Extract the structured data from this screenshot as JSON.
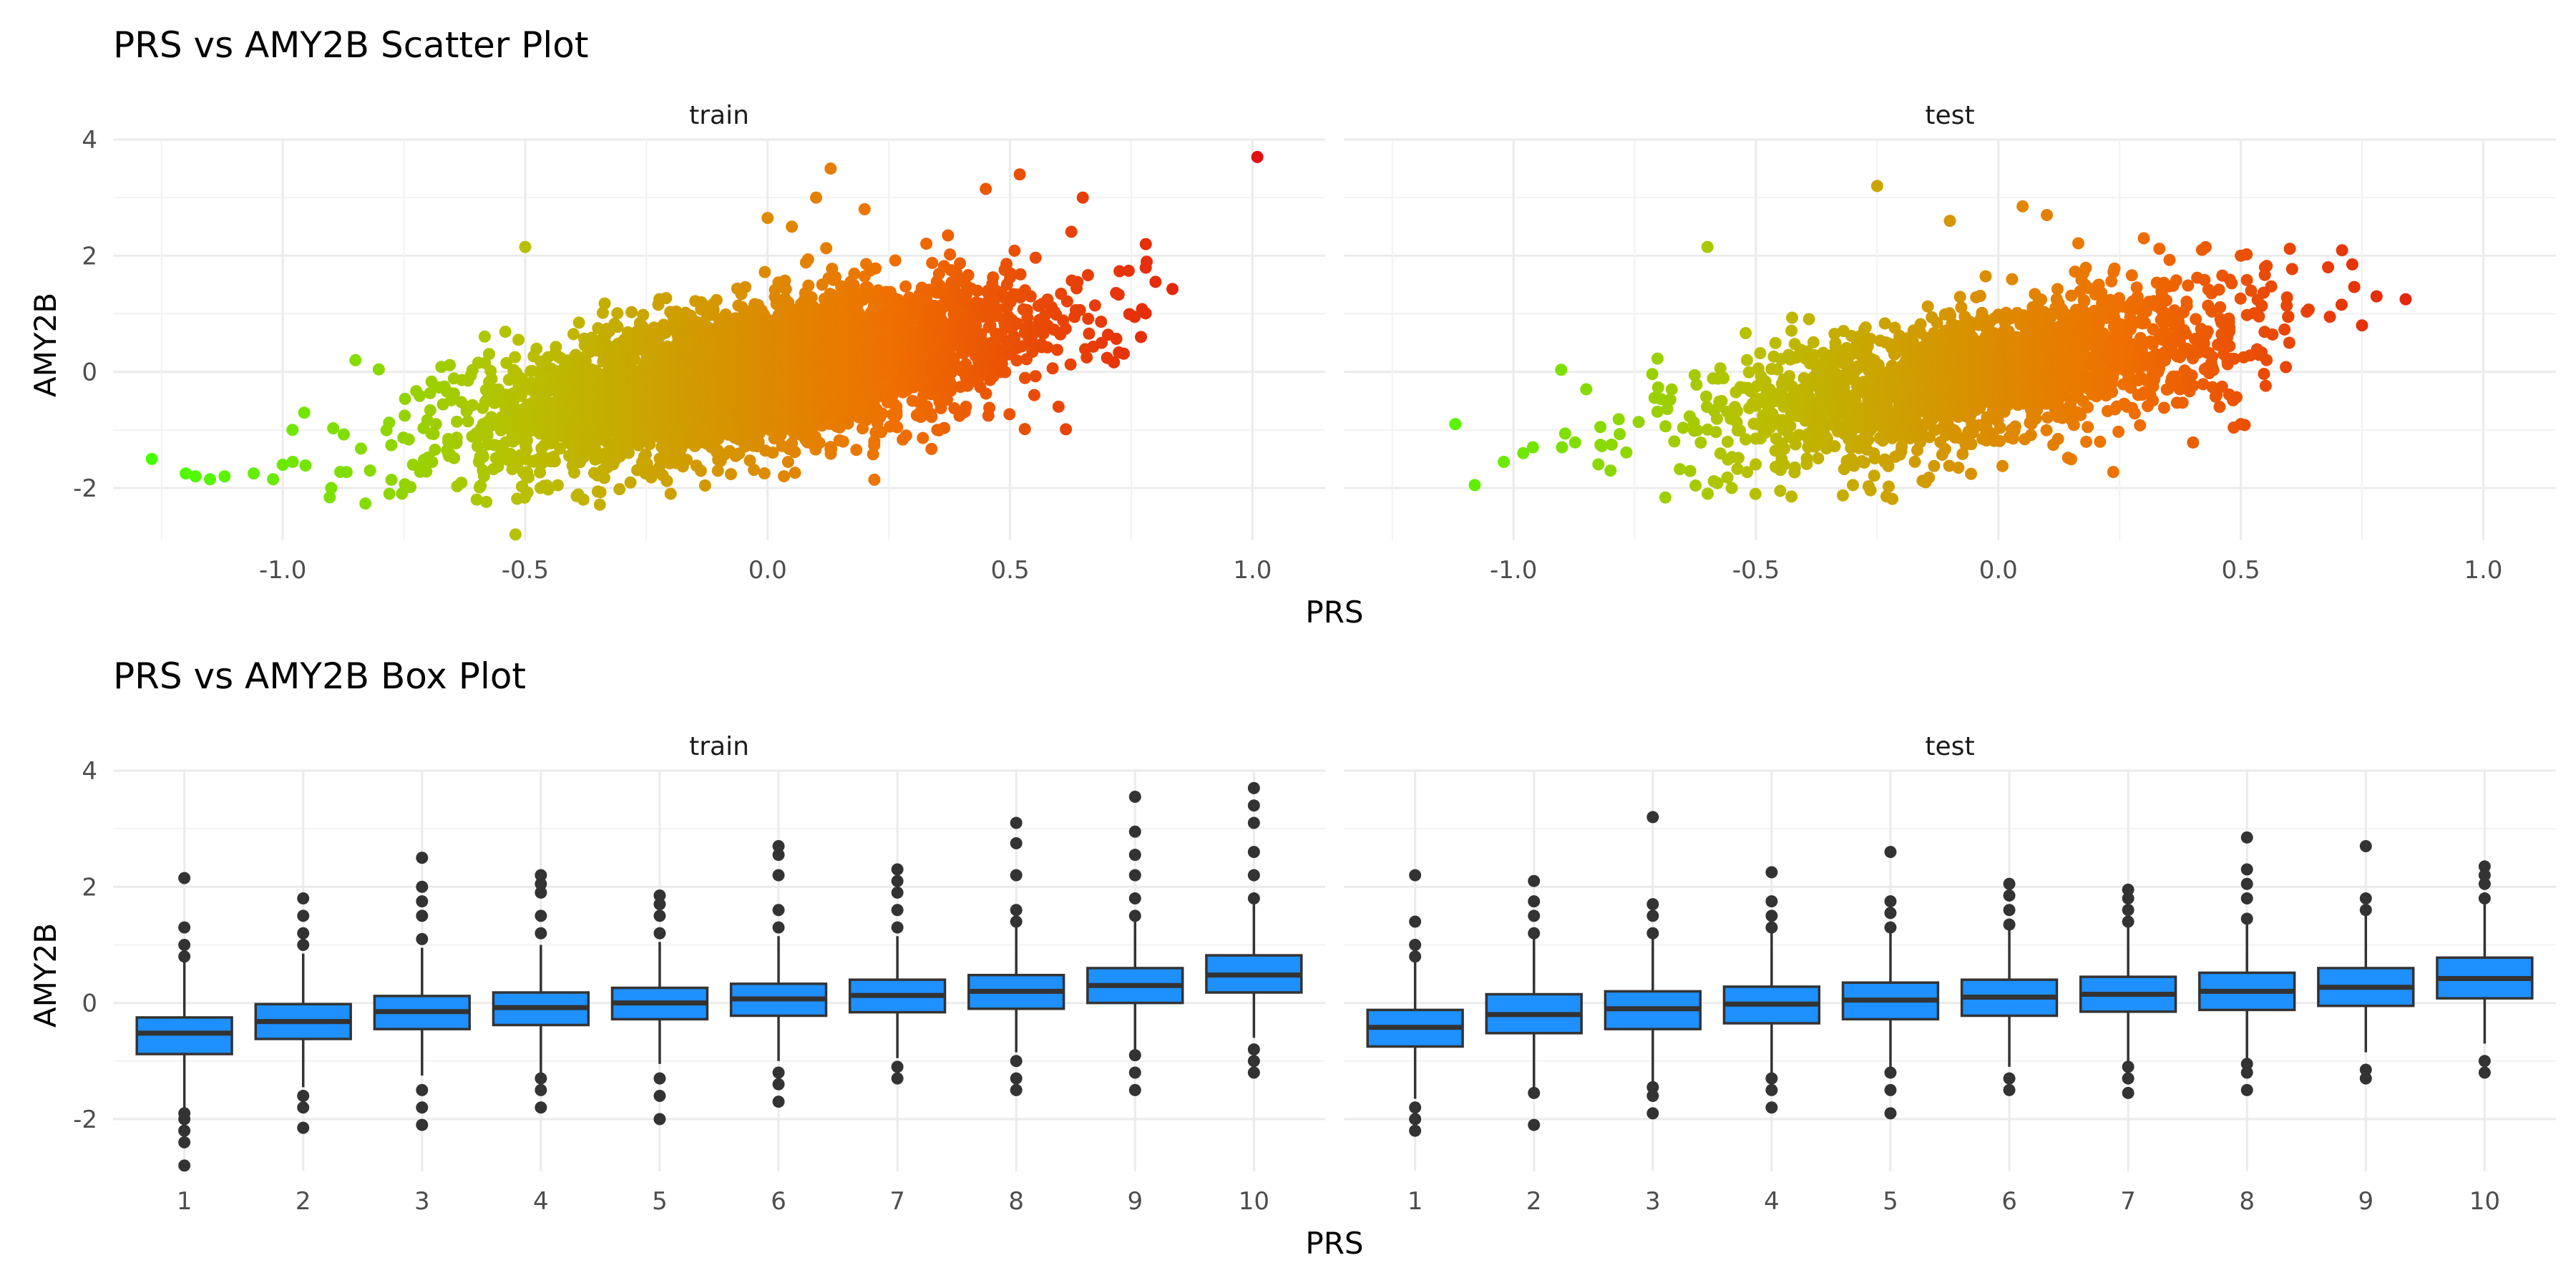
{
  "figure": {
    "scatter_title": "PRS vs AMY2B Scatter Plot",
    "box_title": "PRS vs AMY2B Box Plot",
    "xlabel": "PRS",
    "ylabel": "AMY2B",
    "colors": {
      "gradient": [
        "#44ff00",
        "#b8c000",
        "#ef7000",
        "#e01010"
      ],
      "box_fill": "#1e90ff",
      "box_line": "#333333",
      "grid": "#ebebeb"
    }
  },
  "chart_data": [
    {
      "type": "scatter",
      "title": "PRS vs AMY2B Scatter Plot",
      "xlabel": "PRS",
      "ylabel": "AMY2B",
      "facets": [
        "train",
        "test"
      ],
      "xlim": [
        -1.35,
        1.15
      ],
      "ylim": [
        -2.9,
        4.0
      ],
      "xticks": [
        -1.0,
        -0.5,
        0.0,
        0.5,
        1.0
      ],
      "xtick_labels": [
        "-1.0",
        "-0.5",
        "0.0",
        "0.5",
        "1.0"
      ],
      "yticks": [
        -2,
        0,
        2,
        4
      ],
      "ytick_labels": [
        "-2",
        "0",
        "2",
        "4"
      ],
      "grid": true,
      "color_encoding": "gradient by PRS (green low, orange/red high)",
      "trend": {
        "train": {
          "x_range": [
            -1.25,
            1.01
          ],
          "approx_slope": 1.4,
          "approx_intercept": 0.0
        },
        "test": {
          "x_range": [
            -1.12,
            0.84
          ],
          "approx_slope": 1.4,
          "approx_intercept": 0.0
        }
      },
      "series": [
        {
          "name": "train",
          "points": [
            [
              -1.27,
              -1.5
            ],
            [
              -1.2,
              -1.75
            ],
            [
              -1.18,
              -1.8
            ],
            [
              -1.15,
              -1.85
            ],
            [
              -1.12,
              -1.8
            ],
            [
              -1.06,
              -1.75
            ],
            [
              -1.02,
              -1.85
            ],
            [
              -1.0,
              -1.6
            ],
            [
              -0.98,
              -1.0
            ],
            [
              -0.9,
              -2.0
            ],
            [
              -0.85,
              0.2
            ],
            [
              -0.82,
              -1.7
            ],
            [
              -0.78,
              -2.1
            ],
            [
              -0.5,
              2.15
            ],
            [
              -0.6,
              -2.2
            ],
            [
              -0.52,
              -2.8
            ],
            [
              -0.38,
              -2.2
            ],
            [
              -0.2,
              -2.1
            ],
            [
              0.0,
              2.65
            ],
            [
              0.05,
              2.5
            ],
            [
              0.13,
              3.5
            ],
            [
              0.1,
              3.0
            ],
            [
              0.2,
              2.8
            ],
            [
              0.45,
              3.15
            ],
            [
              0.52,
              3.4
            ],
            [
              0.65,
              3.0
            ],
            [
              0.78,
              2.2
            ],
            [
              0.8,
              1.55
            ],
            [
              0.77,
              0.6
            ],
            [
              0.6,
              -0.6
            ],
            [
              0.55,
              -0.4
            ],
            [
              0.35,
              -1.0
            ],
            [
              1.01,
              3.7
            ]
          ]
        },
        {
          "name": "test",
          "points": [
            [
              -1.12,
              -0.9
            ],
            [
              -1.08,
              -1.95
            ],
            [
              -1.02,
              -1.55
            ],
            [
              -0.98,
              -1.4
            ],
            [
              -0.96,
              -1.3
            ],
            [
              -0.9,
              -1.3
            ],
            [
              -0.85,
              -0.3
            ],
            [
              -0.8,
              -1.7
            ],
            [
              -0.6,
              2.15
            ],
            [
              -0.55,
              -2.0
            ],
            [
              -0.45,
              -2.05
            ],
            [
              -0.3,
              -1.95
            ],
            [
              -0.25,
              3.2
            ],
            [
              -0.15,
              -1.9
            ],
            [
              -0.1,
              2.6
            ],
            [
              0.05,
              2.85
            ],
            [
              0.1,
              2.7
            ],
            [
              0.3,
              2.3
            ],
            [
              0.42,
              2.1
            ],
            [
              0.5,
              2.0
            ],
            [
              0.55,
              1.8
            ],
            [
              0.68,
              1.8
            ],
            [
              0.73,
              1.85
            ],
            [
              0.78,
              1.3
            ],
            [
              0.84,
              1.25
            ],
            [
              0.75,
              0.8
            ],
            [
              0.6,
              0.5
            ],
            [
              0.5,
              -0.9
            ],
            [
              0.45,
              -0.4
            ]
          ]
        }
      ]
    },
    {
      "type": "box",
      "title": "PRS vs AMY2B Box Plot",
      "xlabel": "PRS",
      "ylabel": "AMY2B",
      "facets": [
        "train",
        "test"
      ],
      "categories": [
        "1",
        "2",
        "3",
        "4",
        "5",
        "6",
        "7",
        "8",
        "9",
        "10"
      ],
      "ylim": [
        -2.9,
        4.0
      ],
      "yticks": [
        -2,
        0,
        2,
        4
      ],
      "ytick_labels": [
        "-2",
        "0",
        "2",
        "4"
      ],
      "grid": true,
      "series": [
        {
          "name": "train",
          "boxes": [
            {
              "q1": -0.88,
              "median": -0.52,
              "q3": -0.25,
              "whisker_low": -1.8,
              "whisker_high": 0.7,
              "outliers": [
                -2.8,
                -2.4,
                -2.2,
                -2.0,
                -1.9,
                0.8,
                1.0,
                1.3,
                2.15
              ]
            },
            {
              "q1": -0.62,
              "median": -0.32,
              "q3": -0.02,
              "whisker_low": -1.45,
              "whisker_high": 0.85,
              "outliers": [
                -2.15,
                -1.8,
                -1.6,
                1.0,
                1.2,
                1.5,
                1.8
              ]
            },
            {
              "q1": -0.45,
              "median": -0.15,
              "q3": 0.12,
              "whisker_low": -1.25,
              "whisker_high": 0.95,
              "outliers": [
                -2.1,
                -1.8,
                -1.5,
                1.1,
                1.5,
                1.75,
                2.0,
                2.5
              ]
            },
            {
              "q1": -0.38,
              "median": -0.08,
              "q3": 0.18,
              "whisker_low": -1.2,
              "whisker_high": 1.0,
              "outliers": [
                -1.8,
                -1.5,
                -1.3,
                1.2,
                1.5,
                1.9,
                2.05,
                2.2
              ]
            },
            {
              "q1": -0.28,
              "median": 0.0,
              "q3": 0.26,
              "whisker_low": -1.05,
              "whisker_high": 1.05,
              "outliers": [
                -2.0,
                -1.6,
                -1.3,
                1.2,
                1.5,
                1.7,
                1.85
              ]
            },
            {
              "q1": -0.22,
              "median": 0.07,
              "q3": 0.33,
              "whisker_low": -1.0,
              "whisker_high": 1.15,
              "outliers": [
                -1.7,
                -1.4,
                -1.2,
                1.3,
                1.6,
                2.2,
                2.55,
                2.7
              ]
            },
            {
              "q1": -0.16,
              "median": 0.13,
              "q3": 0.4,
              "whisker_low": -0.95,
              "whisker_high": 1.15,
              "outliers": [
                -1.3,
                -1.1,
                1.3,
                1.6,
                1.9,
                2.1,
                2.3
              ]
            },
            {
              "q1": -0.1,
              "median": 0.2,
              "q3": 0.48,
              "whisker_low": -0.85,
              "whisker_high": 1.3,
              "outliers": [
                -1.5,
                -1.3,
                -1.0,
                1.4,
                1.6,
                2.2,
                2.75,
                3.1
              ]
            },
            {
              "q1": 0.0,
              "median": 0.3,
              "q3": 0.6,
              "whisker_low": -0.8,
              "whisker_high": 1.4,
              "outliers": [
                -1.5,
                -1.2,
                -0.9,
                1.5,
                1.8,
                2.2,
                2.55,
                2.95,
                3.55
              ]
            },
            {
              "q1": 0.18,
              "median": 0.48,
              "q3": 0.82,
              "whisker_low": -0.6,
              "whisker_high": 1.7,
              "outliers": [
                -1.2,
                -1.0,
                -0.8,
                1.8,
                2.2,
                2.6,
                3.1,
                3.4,
                3.7
              ]
            }
          ]
        },
        {
          "name": "test",
          "boxes": [
            {
              "q1": -0.75,
              "median": -0.42,
              "q3": -0.12,
              "whisker_low": -1.65,
              "whisker_high": 0.75,
              "outliers": [
                -2.2,
                -2.0,
                -1.8,
                0.8,
                1.0,
                1.4,
                2.2
              ]
            },
            {
              "q1": -0.52,
              "median": -0.2,
              "q3": 0.15,
              "whisker_low": -1.5,
              "whisker_high": 1.1,
              "outliers": [
                -2.1,
                -1.55,
                1.2,
                1.5,
                1.75,
                2.1
              ]
            },
            {
              "q1": -0.45,
              "median": -0.1,
              "q3": 0.2,
              "whisker_low": -1.35,
              "whisker_high": 1.1,
              "outliers": [
                -1.9,
                -1.6,
                -1.45,
                1.2,
                1.5,
                1.7,
                3.2
              ]
            },
            {
              "q1": -0.35,
              "median": -0.02,
              "q3": 0.28,
              "whisker_low": -1.2,
              "whisker_high": 1.2,
              "outliers": [
                -1.8,
                -1.5,
                -1.3,
                1.3,
                1.5,
                1.75,
                2.25
              ]
            },
            {
              "q1": -0.28,
              "median": 0.05,
              "q3": 0.35,
              "whisker_low": -1.15,
              "whisker_high": 1.2,
              "outliers": [
                -1.9,
                -1.5,
                -1.2,
                1.3,
                1.55,
                1.75,
                2.6
              ]
            },
            {
              "q1": -0.22,
              "median": 0.1,
              "q3": 0.4,
              "whisker_low": -1.1,
              "whisker_high": 1.25,
              "outliers": [
                -1.5,
                -1.3,
                1.35,
                1.6,
                1.85,
                2.05
              ]
            },
            {
              "q1": -0.15,
              "median": 0.15,
              "q3": 0.45,
              "whisker_low": -1.0,
              "whisker_high": 1.3,
              "outliers": [
                -1.55,
                -1.3,
                -1.1,
                1.4,
                1.6,
                1.8,
                1.95
              ]
            },
            {
              "q1": -0.12,
              "median": 0.2,
              "q3": 0.52,
              "whisker_low": -0.95,
              "whisker_high": 1.35,
              "outliers": [
                -1.5,
                -1.2,
                -1.05,
                1.45,
                1.8,
                2.05,
                2.3,
                2.85
              ]
            },
            {
              "q1": -0.05,
              "median": 0.27,
              "q3": 0.6,
              "whisker_low": -0.85,
              "whisker_high": 1.5,
              "outliers": [
                -1.3,
                -1.15,
                1.6,
                1.8,
                2.7
              ]
            },
            {
              "q1": 0.08,
              "median": 0.42,
              "q3": 0.78,
              "whisker_low": -0.7,
              "whisker_high": 1.7,
              "outliers": [
                -1.2,
                -1.0,
                1.8,
                2.05,
                2.2,
                2.35
              ]
            }
          ]
        }
      ]
    }
  ]
}
